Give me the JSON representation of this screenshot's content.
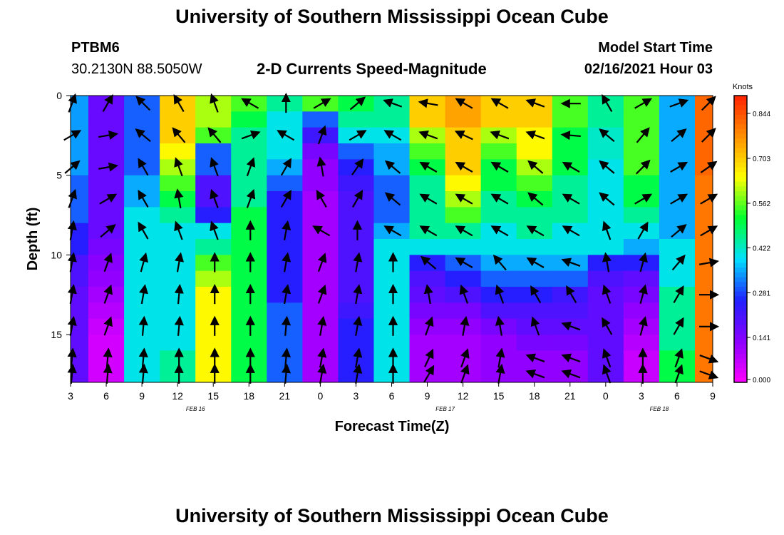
{
  "titles": {
    "top": "University of Southern Mississippi Ocean Cube",
    "bottom": "University of Southern Mississippi Ocean Cube"
  },
  "station": {
    "name": "PTBM6",
    "coords": "30.2130N 88.5050W"
  },
  "plot_title": "2-D Currents Speed-Magnitude",
  "model": {
    "label": "Model Start Time",
    "value": "02/16/2021 Hour 03"
  },
  "colors": {
    "scale": [
      "#ff00ff",
      "#8a00ff",
      "#2020ff",
      "#00e0ff",
      "#00ff30",
      "#ffff00",
      "#ff9000",
      "#ff2000"
    ]
  },
  "chart_data": {
    "type": "heatmap",
    "title": "2-D Currents Speed-Magnitude",
    "xlabel": "Forecast Time(Z)",
    "ylabel": "Depth (ft)",
    "x_ticks": [
      "3",
      "6",
      "9",
      "12",
      "15",
      "18",
      "21",
      "0",
      "3",
      "6",
      "9",
      "12",
      "15",
      "18",
      "21",
      "0",
      "3",
      "6",
      "9"
    ],
    "date_labels": [
      "FEB 16",
      "FEB 17",
      "FEB 18"
    ],
    "y_ticks": [
      0,
      5,
      10,
      15
    ],
    "ylim": [
      0,
      18
    ],
    "colorbar": {
      "unit": "Knots",
      "ticks": [
        "0.844",
        "0.703",
        "0.562",
        "0.422",
        "0.281",
        "0.141",
        "0.000"
      ],
      "range": [
        0,
        0.9
      ]
    },
    "depth_levels": [
      0.5,
      1.5,
      2.5,
      3.5,
      4.5,
      5.5,
      6.5,
      7.5,
      8.5,
      9.5,
      10.5,
      11.5,
      12.5,
      13.5,
      14.5,
      15.5,
      16.5,
      17.5
    ],
    "time_columns": [
      "3",
      "6",
      "9",
      "12",
      "15",
      "18",
      "21",
      "0",
      "3",
      "6",
      "9",
      "12",
      "15",
      "18",
      "21",
      "0",
      "3",
      "6",
      "9"
    ],
    "speed_grid_knots": [
      [
        0.34,
        0.17,
        0.3,
        0.7,
        0.6,
        0.55,
        0.45,
        0.55,
        0.5,
        0.45,
        0.7,
        0.75,
        0.7,
        0.7,
        0.55,
        0.45,
        0.55,
        0.35,
        0.82
      ],
      [
        0.34,
        0.17,
        0.3,
        0.7,
        0.6,
        0.5,
        0.4,
        0.3,
        0.45,
        0.45,
        0.7,
        0.75,
        0.7,
        0.7,
        0.55,
        0.45,
        0.55,
        0.35,
        0.82
      ],
      [
        0.34,
        0.17,
        0.3,
        0.7,
        0.55,
        0.45,
        0.4,
        0.22,
        0.4,
        0.4,
        0.6,
        0.7,
        0.6,
        0.65,
        0.5,
        0.42,
        0.55,
        0.35,
        0.82
      ],
      [
        0.34,
        0.17,
        0.3,
        0.65,
        0.3,
        0.45,
        0.4,
        0.15,
        0.3,
        0.35,
        0.55,
        0.7,
        0.55,
        0.65,
        0.5,
        0.42,
        0.55,
        0.35,
        0.82
      ],
      [
        0.34,
        0.17,
        0.3,
        0.6,
        0.3,
        0.45,
        0.35,
        0.12,
        0.25,
        0.35,
        0.5,
        0.7,
        0.5,
        0.6,
        0.5,
        0.4,
        0.55,
        0.35,
        0.82
      ],
      [
        0.3,
        0.17,
        0.35,
        0.55,
        0.2,
        0.45,
        0.3,
        0.12,
        0.22,
        0.3,
        0.45,
        0.65,
        0.5,
        0.55,
        0.45,
        0.4,
        0.5,
        0.35,
        0.8
      ],
      [
        0.3,
        0.17,
        0.35,
        0.5,
        0.2,
        0.45,
        0.25,
        0.1,
        0.2,
        0.3,
        0.45,
        0.6,
        0.45,
        0.5,
        0.45,
        0.4,
        0.5,
        0.35,
        0.8
      ],
      [
        0.3,
        0.17,
        0.4,
        0.45,
        0.25,
        0.5,
        0.25,
        0.1,
        0.2,
        0.3,
        0.45,
        0.55,
        0.45,
        0.45,
        0.45,
        0.4,
        0.45,
        0.35,
        0.8
      ],
      [
        0.25,
        0.17,
        0.4,
        0.4,
        0.4,
        0.5,
        0.25,
        0.1,
        0.2,
        0.35,
        0.45,
        0.45,
        0.4,
        0.45,
        0.4,
        0.4,
        0.4,
        0.35,
        0.8
      ],
      [
        0.25,
        0.15,
        0.4,
        0.4,
        0.45,
        0.5,
        0.25,
        0.1,
        0.2,
        0.4,
        0.4,
        0.4,
        0.4,
        0.4,
        0.4,
        0.4,
        0.35,
        0.4,
        0.8
      ],
      [
        0.2,
        0.13,
        0.4,
        0.4,
        0.55,
        0.5,
        0.25,
        0.1,
        0.2,
        0.4,
        0.25,
        0.3,
        0.35,
        0.35,
        0.35,
        0.25,
        0.25,
        0.4,
        0.8
      ],
      [
        0.2,
        0.12,
        0.4,
        0.4,
        0.6,
        0.5,
        0.25,
        0.1,
        0.2,
        0.4,
        0.2,
        0.25,
        0.3,
        0.3,
        0.3,
        0.2,
        0.18,
        0.4,
        0.8
      ],
      [
        0.18,
        0.1,
        0.4,
        0.4,
        0.65,
        0.5,
        0.25,
        0.1,
        0.2,
        0.4,
        0.18,
        0.2,
        0.25,
        0.25,
        0.22,
        0.18,
        0.15,
        0.45,
        0.8
      ],
      [
        0.18,
        0.08,
        0.4,
        0.4,
        0.65,
        0.5,
        0.3,
        0.1,
        0.22,
        0.4,
        0.15,
        0.15,
        0.2,
        0.2,
        0.2,
        0.18,
        0.12,
        0.45,
        0.8
      ],
      [
        0.18,
        0.06,
        0.4,
        0.4,
        0.65,
        0.5,
        0.3,
        0.1,
        0.25,
        0.4,
        0.12,
        0.12,
        0.15,
        0.18,
        0.18,
        0.18,
        0.1,
        0.45,
        0.8
      ],
      [
        0.18,
        0.05,
        0.4,
        0.4,
        0.65,
        0.5,
        0.3,
        0.1,
        0.25,
        0.4,
        0.1,
        0.1,
        0.12,
        0.15,
        0.15,
        0.18,
        0.08,
        0.45,
        0.8
      ],
      [
        0.18,
        0.05,
        0.4,
        0.45,
        0.65,
        0.5,
        0.3,
        0.1,
        0.25,
        0.4,
        0.1,
        0.1,
        0.12,
        0.12,
        0.12,
        0.18,
        0.06,
        0.5,
        0.8
      ],
      [
        0.18,
        0.05,
        0.4,
        0.45,
        0.65,
        0.5,
        0.3,
        0.1,
        0.25,
        0.4,
        0.1,
        0.1,
        0.12,
        0.12,
        0.12,
        0.18,
        0.06,
        0.5,
        0.8
      ]
    ],
    "arrow_direction_deg": [
      [
        20,
        30,
        315,
        330,
        340,
        300,
        0,
        60,
        50,
        290,
        280,
        300,
        300,
        290,
        270,
        330,
        60,
        70,
        45
      ],
      [
        70,
        80,
        300,
        340,
        340,
        310,
        340,
        45,
        60,
        290,
        285,
        300,
        295,
        285,
        270,
        320,
        50,
        60,
        40
      ],
      [
        60,
        80,
        310,
        320,
        320,
        70,
        300,
        20,
        60,
        300,
        290,
        295,
        290,
        290,
        275,
        310,
        40,
        50,
        45
      ],
      [
        55,
        80,
        320,
        330,
        340,
        300,
        10,
        20,
        45,
        310,
        290,
        295,
        300,
        300,
        300,
        310,
        40,
        60,
        50
      ],
      [
        50,
        80,
        330,
        340,
        340,
        20,
        30,
        350,
        35,
        310,
        300,
        300,
        300,
        310,
        300,
        310,
        45,
        60,
        55
      ],
      [
        30,
        70,
        330,
        350,
        340,
        20,
        40,
        340,
        30,
        310,
        300,
        300,
        300,
        310,
        300,
        310,
        50,
        60,
        55
      ],
      [
        20,
        60,
        330,
        350,
        340,
        20,
        30,
        330,
        30,
        310,
        300,
        300,
        300,
        310,
        300,
        310,
        60,
        60,
        60
      ],
      [
        20,
        60,
        330,
        340,
        340,
        0,
        15,
        320,
        10,
        300,
        300,
        300,
        300,
        310,
        300,
        320,
        40,
        60,
        60
      ],
      [
        10,
        50,
        330,
        340,
        340,
        0,
        10,
        300,
        0,
        300,
        300,
        300,
        300,
        300,
        300,
        340,
        30,
        50,
        60
      ],
      [
        10,
        50,
        30,
        330,
        350,
        5,
        10,
        300,
        5,
        300,
        300,
        300,
        300,
        300,
        300,
        340,
        20,
        50,
        60
      ],
      [
        10,
        20,
        15,
        10,
        0,
        0,
        10,
        20,
        10,
        0,
        310,
        300,
        320,
        300,
        290,
        350,
        15,
        40,
        80
      ],
      [
        10,
        20,
        15,
        10,
        0,
        0,
        10,
        20,
        10,
        0,
        330,
        310,
        330,
        320,
        300,
        350,
        15,
        30,
        90
      ],
      [
        10,
        20,
        10,
        5,
        0,
        0,
        10,
        20,
        10,
        0,
        350,
        340,
        340,
        330,
        330,
        340,
        15,
        30,
        90
      ],
      [
        10,
        20,
        10,
        5,
        0,
        0,
        10,
        20,
        10,
        0,
        10,
        340,
        350,
        340,
        300,
        340,
        15,
        30,
        90
      ],
      [
        10,
        20,
        5,
        5,
        0,
        0,
        5,
        10,
        10,
        0,
        20,
        10,
        350,
        340,
        290,
        330,
        15,
        30,
        90
      ],
      [
        5,
        10,
        5,
        0,
        0,
        0,
        5,
        10,
        10,
        0,
        20,
        20,
        10,
        290,
        290,
        340,
        10,
        20,
        110
      ],
      [
        5,
        5,
        5,
        0,
        0,
        0,
        5,
        10,
        10,
        0,
        25,
        20,
        10,
        290,
        290,
        340,
        0,
        20,
        110
      ],
      [
        5,
        5,
        5,
        0,
        0,
        0,
        5,
        10,
        10,
        0,
        30,
        20,
        10,
        290,
        290,
        340,
        0,
        20,
        110
      ]
    ]
  },
  "x_axis_title": "Forecast Time(Z)",
  "y_axis_title": "Depth (ft)",
  "colorbar_unit": "Knots"
}
